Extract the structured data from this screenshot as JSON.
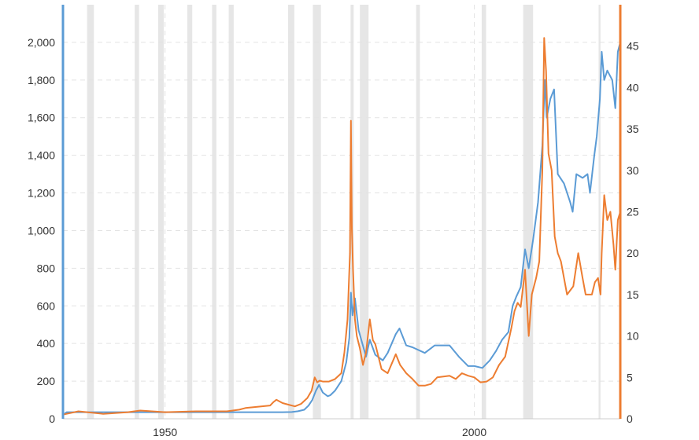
{
  "chart_data": {
    "type": "line",
    "title": "",
    "xlabel": "",
    "ylabel_left": "",
    "ylabel_right": "",
    "grid": true,
    "legend": "none",
    "x_range": [
      1933.5,
      2023.6
    ],
    "x_ticks": [
      {
        "value": 1950,
        "label": "1950"
      },
      {
        "value": 2000,
        "label": "2000"
      }
    ],
    "y_left": {
      "range": [
        0,
        2200
      ],
      "ticks": [
        {
          "value": 0,
          "label": "0"
        },
        {
          "value": 200,
          "label": "200"
        },
        {
          "value": 400,
          "label": "400"
        },
        {
          "value": 600,
          "label": "600"
        },
        {
          "value": 800,
          "label": "800"
        },
        {
          "value": 1000,
          "label": "1,000"
        },
        {
          "value": 1200,
          "label": "1,200"
        },
        {
          "value": 1400,
          "label": "1,400"
        },
        {
          "value": 1600,
          "label": "1,600"
        },
        {
          "value": 1800,
          "label": "1,800"
        },
        {
          "value": 2000,
          "label": "2,000"
        }
      ]
    },
    "y_right": {
      "range": [
        0,
        50
      ],
      "ticks": [
        {
          "value": 0,
          "label": "0"
        },
        {
          "value": 5,
          "label": "5"
        },
        {
          "value": 10,
          "label": "10"
        },
        {
          "value": 15,
          "label": "15"
        },
        {
          "value": 20,
          "label": "20"
        },
        {
          "value": 25,
          "label": "25"
        },
        {
          "value": 30,
          "label": "30"
        },
        {
          "value": 35,
          "label": "35"
        },
        {
          "value": 40,
          "label": "40"
        },
        {
          "value": 45,
          "label": "45"
        }
      ]
    },
    "recession_bands": [
      [
        1937.4,
        1938.5
      ],
      [
        1945.1,
        1945.8
      ],
      [
        1948.9,
        1949.8
      ],
      [
        1953.6,
        1954.4
      ],
      [
        1957.6,
        1958.3
      ],
      [
        1960.3,
        1961.1
      ],
      [
        1969.9,
        1970.9
      ],
      [
        1973.9,
        1975.2
      ],
      [
        1980.0,
        1980.5
      ],
      [
        1981.5,
        1982.9
      ],
      [
        1990.6,
        1991.2
      ],
      [
        2001.2,
        2001.9
      ],
      [
        2007.9,
        2009.5
      ],
      [
        2020.1,
        2020.4
      ]
    ],
    "series": [
      {
        "axis": "left",
        "color": "#5b9bd5",
        "x": [
          1933.5,
          1934.1,
          1940,
          1946,
          1950,
          1955,
          1960,
          1965,
          1969,
          1970.5,
          1971.5,
          1972.5,
          1973.2,
          1973.8,
          1974.4,
          1974.9,
          1975.5,
          1976.3,
          1976.7,
          1977.5,
          1978.5,
          1979.3,
          1979.8,
          1980.05,
          1980.3,
          1980.7,
          1981.3,
          1982.5,
          1983.1,
          1984,
          1985.2,
          1986,
          1987.3,
          1987.9,
          1989,
          1990,
          1992,
          1993.6,
          1996,
          1997.5,
          1999,
          2000,
          2001.3,
          2002.5,
          2003.5,
          2004.5,
          2005.5,
          2006.2,
          2006.8,
          2007.5,
          2008.2,
          2008.8,
          2009.5,
          2010.3,
          2011,
          2011.4,
          2011.7,
          2012.3,
          2012.9,
          2013.5,
          2014.5,
          2015.5,
          2015.9,
          2016.5,
          2017.5,
          2018.3,
          2018.7,
          2019.4,
          2019.8,
          2020.3,
          2020.6,
          2021,
          2021.5,
          2022.3,
          2022.8,
          2023.2,
          2023.6
        ],
        "y": [
          20,
          35,
          35,
          35,
          35,
          35,
          35,
          35,
          35,
          36,
          40,
          48,
          70,
          100,
          150,
          180,
          140,
          120,
          125,
          150,
          200,
          300,
          430,
          670,
          550,
          640,
          470,
          330,
          420,
          340,
          310,
          350,
          450,
          480,
          390,
          380,
          350,
          390,
          390,
          330,
          280,
          280,
          270,
          310,
          360,
          420,
          460,
          600,
          650,
          700,
          900,
          800,
          950,
          1150,
          1450,
          1800,
          1600,
          1700,
          1750,
          1300,
          1250,
          1150,
          1100,
          1300,
          1280,
          1300,
          1200,
          1400,
          1500,
          1700,
          1950,
          1800,
          1850,
          1800,
          1650,
          1950,
          2000
        ]
      },
      {
        "axis": "right",
        "color": "#ed7d31",
        "x": [
          1933.5,
          1934.1,
          1936,
          1940,
          1944,
          1946,
          1950,
          1955,
          1960,
          1962,
          1963,
          1967,
          1967.5,
          1968,
          1969,
          1970,
          1971,
          1972,
          1973,
          1973.7,
          1974.2,
          1974.6,
          1975,
          1975.5,
          1976.5,
          1977.5,
          1978.5,
          1979,
          1979.5,
          1979.9,
          1980.05,
          1980.2,
          1980.4,
          1980.7,
          1981,
          1981.5,
          1982,
          1982.5,
          1983.1,
          1983.6,
          1984,
          1985,
          1986,
          1987.3,
          1988,
          1989,
          1990,
          1991,
          1992,
          1993,
          1994,
          1996,
          1997,
          1998,
          1999,
          2000,
          2001,
          2002,
          2003,
          2004,
          2005,
          2006,
          2006.5,
          2007,
          2007.5,
          2008.2,
          2008.8,
          2009.3,
          2010,
          2010.5,
          2011,
          2011.3,
          2011.6,
          2012,
          2012.5,
          2013,
          2013.5,
          2014,
          2015,
          2016,
          2016.8,
          2017.5,
          2018,
          2019,
          2019.5,
          2020,
          2020.4,
          2020.6,
          2021,
          2021.5,
          2022,
          2022.5,
          2022.8,
          2023.2,
          2023.6
        ],
        "y": [
          0.5,
          0.6,
          0.9,
          0.6,
          0.8,
          1.0,
          0.8,
          0.9,
          0.9,
          1.1,
          1.3,
          1.6,
          2.0,
          2.3,
          1.9,
          1.7,
          1.5,
          1.8,
          2.5,
          3.4,
          5.0,
          4.4,
          4.6,
          4.5,
          4.5,
          4.8,
          5.5,
          8.0,
          12,
          20,
          36,
          23,
          18,
          12,
          10,
          8.5,
          6.5,
          8.0,
          12,
          9.5,
          9.0,
          6.0,
          5.5,
          7.8,
          6.5,
          5.5,
          4.8,
          4.0,
          4.0,
          4.2,
          5.0,
          5.2,
          4.8,
          5.5,
          5.2,
          5.0,
          4.4,
          4.5,
          5.0,
          6.5,
          7.5,
          11,
          13,
          14,
          13.5,
          18,
          10,
          15,
          17,
          19,
          30,
          46,
          42,
          32,
          30,
          22,
          20,
          19,
          15,
          16,
          20,
          17,
          15,
          15,
          16.5,
          17,
          15,
          20,
          27,
          24,
          25,
          21,
          18,
          24,
          25
        ]
      }
    ]
  }
}
